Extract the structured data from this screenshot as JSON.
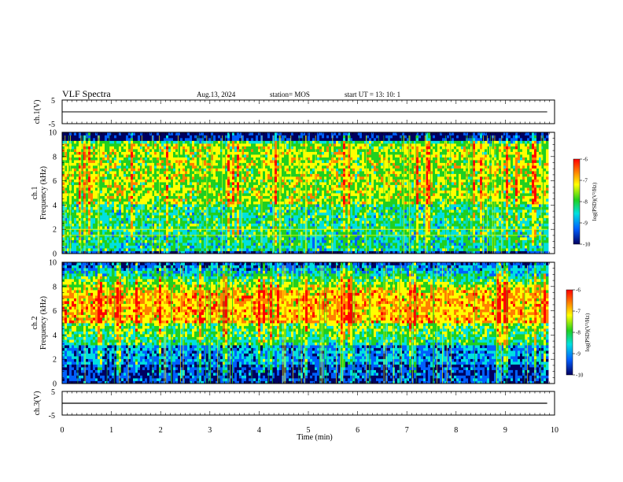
{
  "header": {
    "title": "VLF Spectra",
    "date": "Aug.13, 2024",
    "station": "station= MOS",
    "start_ut": "start  UT  =   13: 10: 1"
  },
  "colors": {
    "low": "#000060",
    "mid_blue": "#0060ff",
    "cyan": "#00e0e0",
    "green": "#20d020",
    "yellow": "#ffff00",
    "orange": "#ff8000",
    "high": "#ff0000",
    "line_black": "#000000"
  },
  "chart_data": [
    {
      "type": "line",
      "panel": "ch1-waveform",
      "ylabel": "ch.1(V)",
      "ylim": [
        -5,
        5
      ],
      "yticks": [
        "5",
        "-5"
      ],
      "xlim": [
        0,
        10
      ],
      "series": [
        {
          "x": [
            0,
            9.85
          ],
          "y": [
            0,
            0
          ]
        }
      ]
    },
    {
      "type": "heatmap",
      "panel": "ch1-spectrogram",
      "ylabel_line1": "ch.1",
      "ylabel_line2": "Frequency (kHz)",
      "ylim": [
        0,
        10
      ],
      "yticks": [
        "0",
        "2",
        "4",
        "6",
        "8",
        "10"
      ],
      "xlim": [
        0,
        10
      ],
      "data_end_min": 9.85,
      "band_top_khz": 9.3,
      "strong_band_khz": [
        4.0,
        9.0
      ],
      "lower_band_khz": [
        0.2,
        1.5
      ],
      "line_khz": [
        1.5,
        2.0
      ],
      "colorbar": {
        "label": "log(PSD)(V²/Hz)",
        "ticks": [
          "-6",
          "-7",
          "-8",
          "-9",
          "-10"
        ],
        "range": [
          -10,
          -6
        ]
      }
    },
    {
      "type": "heatmap",
      "panel": "ch2-spectrogram",
      "ylabel_line1": "ch.2",
      "ylabel_line2": "Frequency (kHz)",
      "ylim": [
        0,
        10
      ],
      "yticks": [
        "0",
        "2",
        "4",
        "6",
        "8",
        "10"
      ],
      "xlim": [
        0,
        10
      ],
      "data_end_min": 9.85,
      "peak_band_khz": [
        5.0,
        7.5
      ],
      "low_band_khz": [
        0.0,
        1.5
      ],
      "colorbar": {
        "label": "log(PSD)(V²/Hz)",
        "ticks": [
          "-6",
          "-7",
          "-8",
          "-9",
          "-10"
        ],
        "range": [
          -10,
          -6
        ]
      }
    },
    {
      "type": "line",
      "panel": "ch3-waveform",
      "ylabel": "ch.3(V)",
      "ylim": [
        -5,
        5
      ],
      "yticks": [
        "5",
        "-5"
      ],
      "xlim": [
        0,
        10
      ],
      "xticks": [
        "0",
        "1",
        "2",
        "3",
        "4",
        "5",
        "6",
        "7",
        "8",
        "9",
        "10"
      ],
      "xlabel": "Time  (min)",
      "series": [
        {
          "x": [
            0,
            9.85
          ],
          "y": [
            0,
            0
          ]
        }
      ]
    }
  ]
}
